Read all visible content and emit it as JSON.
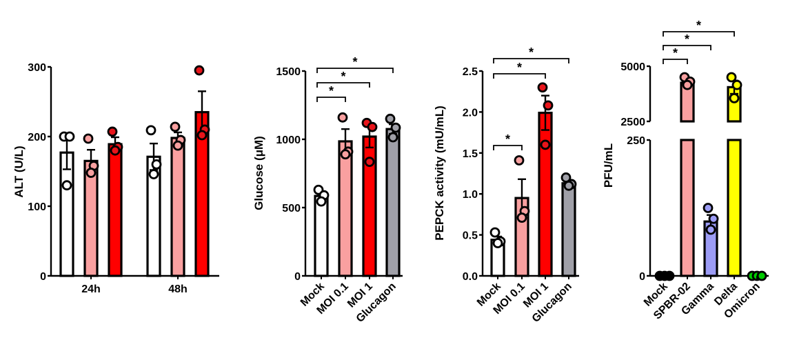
{
  "chart_data": [
    {
      "id": "alt",
      "type": "bar",
      "ylabel": "ALT (U/L)",
      "ylim": [
        0,
        300
      ],
      "yticks": [
        0,
        100,
        200,
        300
      ],
      "ytick_labels": [
        "0",
        "100",
        "200",
        "300"
      ],
      "categories": [
        "24h",
        "48h"
      ],
      "series": [
        {
          "name": "Mock",
          "color": "#ffffff",
          "point_color": "#ffffff",
          "values": [
            177,
            171
          ],
          "sem": [
            24,
            19
          ],
          "points": [
            [
              200,
              200,
              130
            ],
            [
              209,
              160,
              146
            ]
          ]
        },
        {
          "name": "MOI 0.1",
          "color": "#f9a0a0",
          "point_color": "#f9a0a0",
          "values": [
            165,
            198
          ],
          "sem": [
            16,
            8
          ],
          "points": [
            [
              197,
              158,
              148
            ],
            [
              214,
              195,
              187
            ]
          ]
        },
        {
          "name": "MOI 1",
          "color": "#ff0000",
          "point_color": "#e8151b",
          "values": [
            189,
            235
          ],
          "sem": [
            10,
            30
          ],
          "points": [
            [
              207,
              185,
              180
            ],
            [
              295,
              210,
              202
            ]
          ]
        }
      ],
      "significance": []
    },
    {
      "id": "glucose",
      "type": "bar",
      "ylabel": "Glucose (μM)",
      "ylim": [
        0,
        1500
      ],
      "yticks": [
        0,
        500,
        1000,
        1500
      ],
      "ytick_labels": [
        "0",
        "500",
        "1000",
        "1500"
      ],
      "categories": [
        "Mock",
        "MOI 0.1",
        "MOI 1",
        "Glucagon"
      ],
      "colors": [
        "#ffffff",
        "#f9a0a0",
        "#ff0000",
        "#a0a0a8"
      ],
      "point_colors": [
        "#ffffff",
        "#f9a0a0",
        "#e8151b",
        "#a0a0a8"
      ],
      "values": [
        585,
        985,
        1020,
        1075
      ],
      "sem": [
        25,
        90,
        80,
        35
      ],
      "points": [
        [
          630,
          590,
          545
        ],
        [
          1160,
          910,
          890
        ],
        [
          1120,
          1090,
          835
        ],
        [
          1150,
          1085,
          1015
        ]
      ],
      "significance": [
        {
          "from": 0,
          "to": 1,
          "label": "*",
          "level": 1
        },
        {
          "from": 0,
          "to": 2,
          "label": "*",
          "level": 2
        },
        {
          "from": 0,
          "to": 3,
          "label": "*",
          "level": 3
        }
      ]
    },
    {
      "id": "pepck",
      "type": "bar",
      "ylabel": "PEPCK activity (mU/mL)",
      "ylim": [
        0,
        2.5
      ],
      "yticks": [
        0,
        0.5,
        1.0,
        1.5,
        2.0,
        2.5
      ],
      "ytick_labels": [
        "0.0",
        "0.5",
        "1.0",
        "1.5",
        "2.0",
        "2.5"
      ],
      "categories": [
        "Mock",
        "MOI 0.1",
        "MOI 1",
        "Glucagon"
      ],
      "colors": [
        "#ffffff",
        "#f9a0a0",
        "#ff0000",
        "#a0a0a8"
      ],
      "point_colors": [
        "#ffffff",
        "#f9a0a0",
        "#e8151b",
        "#a0a0a8"
      ],
      "values": [
        0.44,
        0.95,
        1.99,
        1.13
      ],
      "sem": [
        0.04,
        0.23,
        0.21,
        0.03
      ],
      "points": [
        [
          0.53,
          0.42,
          0.4
        ],
        [
          1.41,
          0.79,
          0.71
        ],
        [
          2.3,
          2.08,
          1.6
        ],
        [
          1.2,
          1.12,
          1.1
        ]
      ],
      "significance": [
        {
          "from": 0,
          "to": 1,
          "label": "*",
          "value": 1.6
        },
        {
          "from": 0,
          "to": 2,
          "label": "*",
          "value": 2.55
        },
        {
          "from": 0,
          "to": 3,
          "label": "*",
          "value": 2.77
        }
      ]
    },
    {
      "id": "pfu",
      "type": "bar",
      "ylabel": "PFU/mL",
      "axis_break": {
        "lower": [
          0,
          250
        ],
        "upper": [
          2500,
          5000
        ]
      },
      "yticks": [
        0,
        250,
        2500,
        5000
      ],
      "ytick_labels": [
        "0",
        "250",
        "2500",
        "5000"
      ],
      "categories": [
        "Mock",
        "SPBR-02",
        "Gamma",
        "Delta",
        "Omicron"
      ],
      "colors": [
        "#ffffff",
        "#f9a0a0",
        "#9c9cf5",
        "#ffff00",
        "#00cc00"
      ],
      "point_colors": [
        "#000000",
        "#f9a0a0",
        "#9c9cf5",
        "#ffff00",
        "#00cc00"
      ],
      "values": [
        0,
        4250,
        100,
        4050,
        0
      ],
      "sem": [
        0,
        120,
        12,
        300,
        0
      ],
      "points": [
        [
          0,
          0,
          0
        ],
        [
          4500,
          4300,
          4150
        ],
        [
          125,
          105,
          85
        ],
        [
          4500,
          4150,
          3550
        ],
        [
          0,
          0,
          0
        ]
      ],
      "significance": [
        {
          "from": 0,
          "to": 1,
          "label": "*",
          "level": 1
        },
        {
          "from": 0,
          "to": 2,
          "label": "*",
          "level": 2
        },
        {
          "from": 0,
          "to": 3,
          "label": "*",
          "level": 3
        }
      ]
    }
  ]
}
